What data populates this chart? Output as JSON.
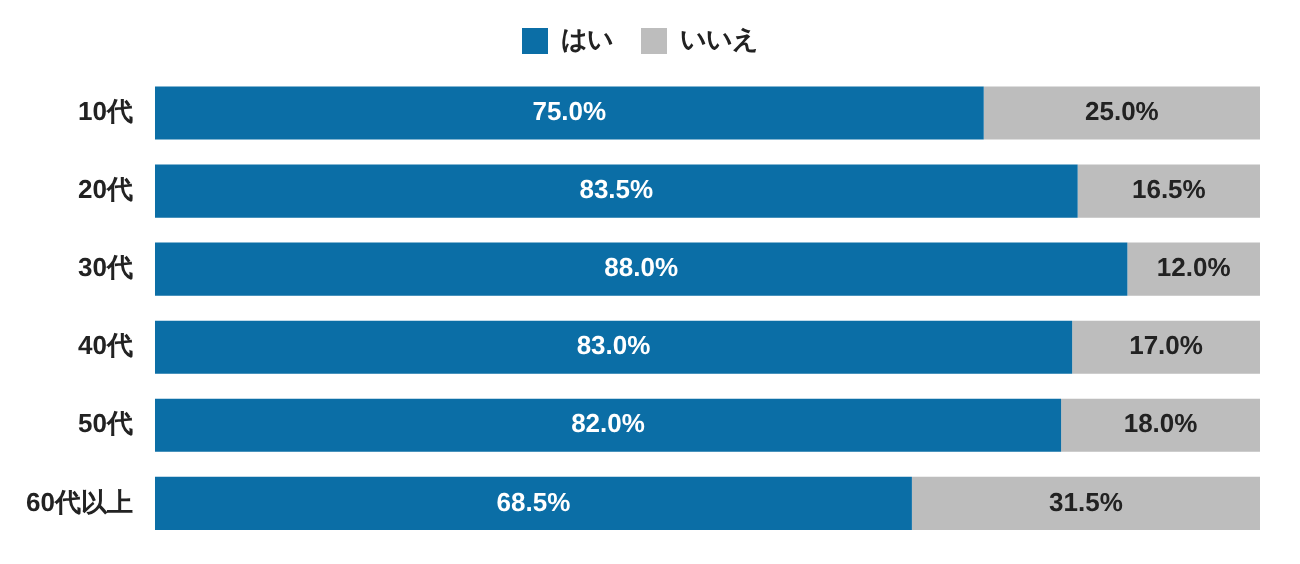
{
  "chart_data": {
    "type": "bar",
    "orientation": "horizontal",
    "stacked": true,
    "legend": "top",
    "categories": [
      "10代",
      "20代",
      "30代",
      "40代",
      "50代",
      "60代以上"
    ],
    "series": [
      {
        "name": "はい",
        "color": "#0b6ea6",
        "values": [
          75.0,
          83.5,
          88.0,
          83.0,
          82.0,
          68.5
        ],
        "value_labels": [
          "75.0%",
          "83.5%",
          "88.0%",
          "83.0%",
          "82.0%",
          "68.5%"
        ]
      },
      {
        "name": "いいえ",
        "color": "#bdbdbd",
        "values": [
          25.0,
          16.5,
          12.0,
          17.0,
          18.0,
          31.5
        ],
        "value_labels": [
          "25.0%",
          "16.5%",
          "12.0%",
          "17.0%",
          "18.0%",
          "31.5%"
        ]
      }
    ]
  }
}
